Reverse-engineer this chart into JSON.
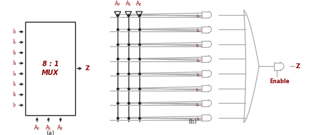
{
  "bg_color": "#ffffff",
  "dark_color": "#222222",
  "red_color": "#8B0000",
  "line_color": "#aaaaaa",
  "fig_width": 4.74,
  "fig_height": 1.98,
  "input_labels": [
    "I₀",
    "I₁",
    "I₂",
    "I₃",
    "I₄",
    "I₅",
    "I₆",
    "I₇"
  ],
  "sel_labels": [
    "A₀",
    "A₁",
    "A₂"
  ],
  "label_a": "(a)",
  "label_b": "(b)",
  "mux_top": "8 : 1",
  "mux_bot": "MUX",
  "out_z": "Z",
  "enable": "Enable"
}
